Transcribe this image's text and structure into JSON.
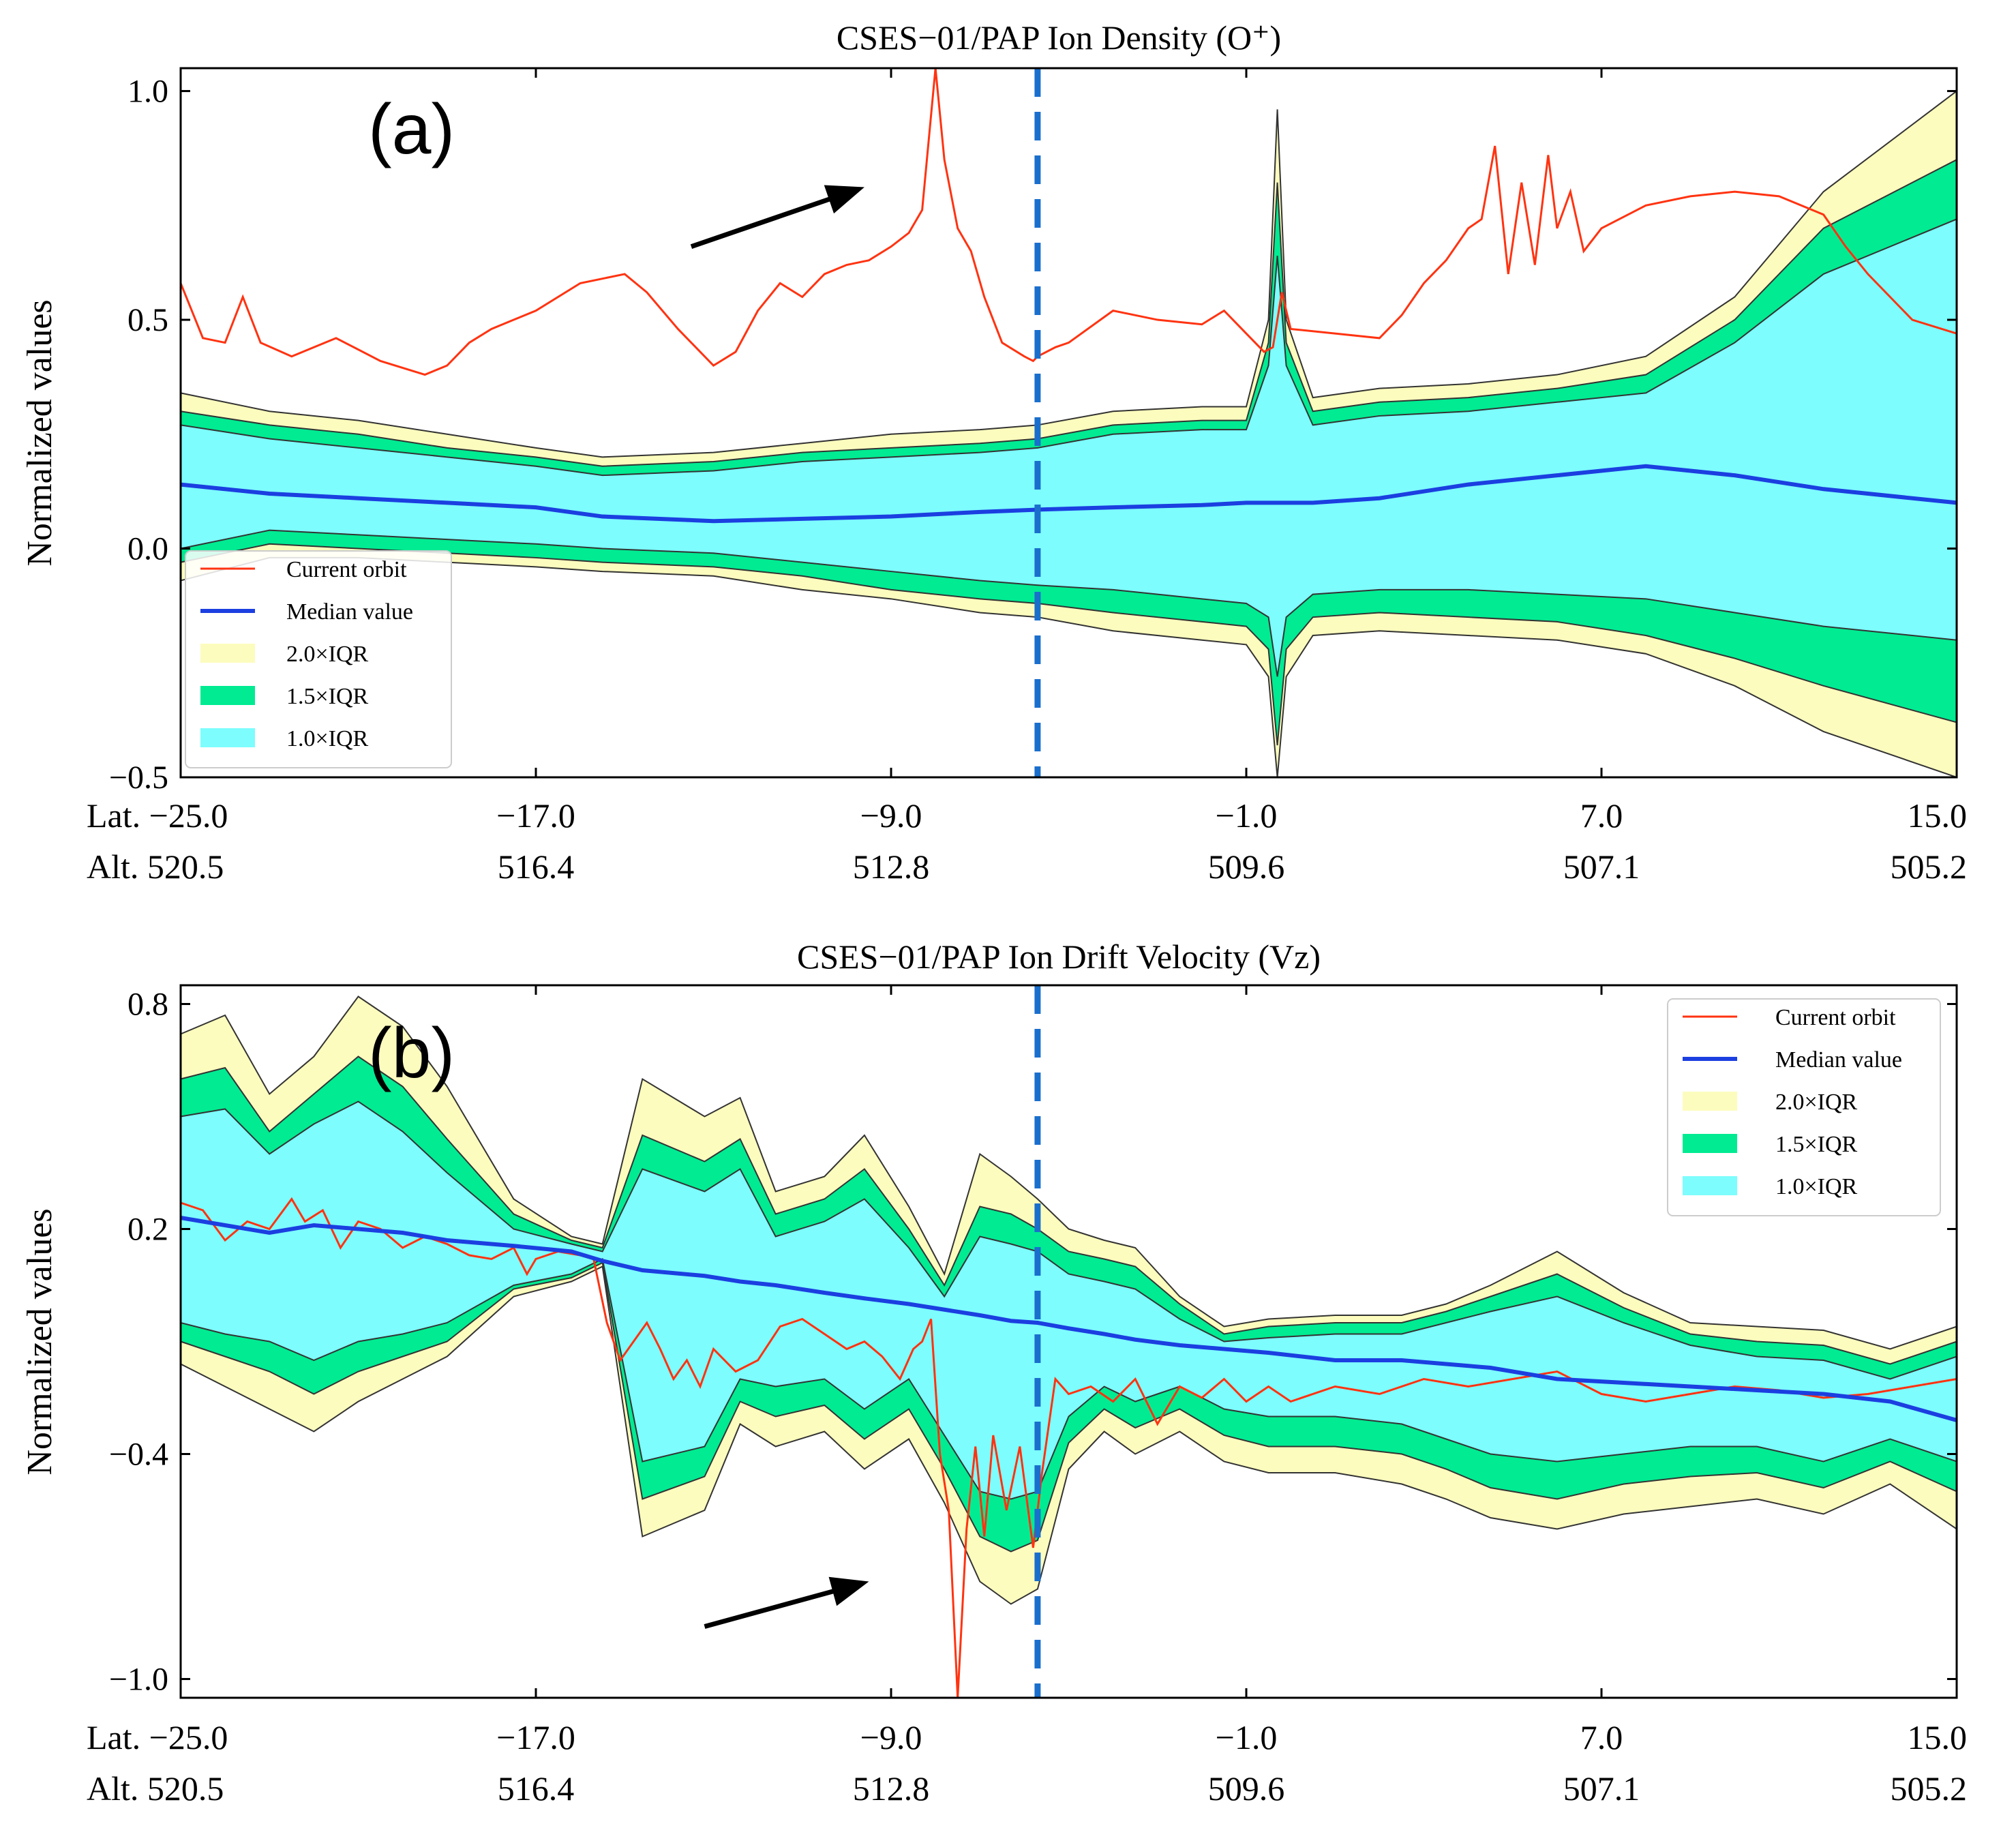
{
  "charts": [
    {
      "id": "a",
      "chart_data": {
        "type": "area",
        "title": "CSES−01/PAP Ion Density (O⁺)",
        "panel_label": "(a)",
        "ylabel": "Normalized values",
        "ylim": [
          -0.5,
          1.05
        ],
        "yticks": [
          -0.5,
          0.0,
          0.5,
          1.0
        ],
        "ytick_labels": [
          "−0.5",
          "0.0",
          "0.5",
          "1.0"
        ],
        "xlim": [
          -25.0,
          15.0
        ],
        "xticks": [
          -25.0,
          -17.0,
          -9.0,
          -1.0,
          7.0,
          15.0
        ],
        "xtick_lat_labels": [
          "Lat. −25.0",
          "−17.0",
          "−9.0",
          "−1.0",
          "7.0",
          "15.0"
        ],
        "xtick_alt_labels": [
          "Alt. 520.5",
          "516.4",
          "512.8",
          "509.6",
          "507.1",
          "505.2"
        ],
        "event_line_lat": -5.7,
        "arrow": {
          "from": [
            -13.5,
            0.66
          ],
          "to": [
            -9.6,
            0.79
          ]
        },
        "legend_position": "lower-left",
        "legend": [
          "Current orbit",
          "Median value",
          "2.0×IQR",
          "1.5×IQR",
          "1.0×IQR"
        ],
        "x": [
          -25,
          -23,
          -21,
          -19,
          -17,
          -15.5,
          -13,
          -11,
          -9,
          -7,
          -5.7,
          -4,
          -2,
          -1,
          -0.5,
          -0.3,
          -0.1,
          0.5,
          2,
          4,
          6,
          8,
          10,
          12,
          15
        ],
        "series": [
          {
            "name": "Median value",
            "values": [
              0.14,
              0.12,
              0.11,
              0.1,
              0.09,
              0.07,
              0.06,
              0.065,
              0.07,
              0.08,
              0.085,
              0.09,
              0.095,
              0.1,
              0.1,
              0.1,
              0.1,
              0.1,
              0.11,
              0.14,
              0.16,
              0.18,
              0.16,
              0.13,
              0.1
            ]
          },
          {
            "name": "2.0×IQR upper",
            "values": [
              0.34,
              0.3,
              0.28,
              0.25,
              0.22,
              0.2,
              0.21,
              0.23,
              0.25,
              0.26,
              0.27,
              0.3,
              0.31,
              0.31,
              0.5,
              0.96,
              0.5,
              0.33,
              0.35,
              0.36,
              0.38,
              0.42,
              0.55,
              0.78,
              1.0
            ]
          },
          {
            "name": "1.5×IQR upper",
            "values": [
              0.3,
              0.27,
              0.25,
              0.22,
              0.2,
              0.18,
              0.19,
              0.21,
              0.22,
              0.23,
              0.24,
              0.27,
              0.28,
              0.28,
              0.45,
              0.8,
              0.45,
              0.3,
              0.32,
              0.33,
              0.35,
              0.38,
              0.5,
              0.7,
              0.85
            ]
          },
          {
            "name": "1.0×IQR upper",
            "values": [
              0.27,
              0.24,
              0.22,
              0.2,
              0.18,
              0.16,
              0.17,
              0.19,
              0.2,
              0.21,
              0.22,
              0.25,
              0.26,
              0.26,
              0.4,
              0.64,
              0.4,
              0.27,
              0.29,
              0.3,
              0.32,
              0.34,
              0.45,
              0.6,
              0.72
            ]
          },
          {
            "name": "1.0×IQR lower",
            "values": [
              0.0,
              0.04,
              0.03,
              0.02,
              0.01,
              0.0,
              -0.01,
              -0.03,
              -0.05,
              -0.07,
              -0.08,
              -0.09,
              -0.11,
              -0.12,
              -0.15,
              -0.28,
              -0.15,
              -0.1,
              -0.09,
              -0.09,
              -0.1,
              -0.11,
              -0.14,
              -0.17,
              -0.2
            ]
          },
          {
            "name": "1.5×IQR lower",
            "values": [
              -0.03,
              0.01,
              0.0,
              -0.01,
              -0.02,
              -0.03,
              -0.04,
              -0.06,
              -0.09,
              -0.11,
              -0.12,
              -0.14,
              -0.16,
              -0.17,
              -0.22,
              -0.43,
              -0.22,
              -0.15,
              -0.14,
              -0.15,
              -0.16,
              -0.19,
              -0.24,
              -0.3,
              -0.38
            ]
          },
          {
            "name": "2.0×IQR lower",
            "values": [
              -0.07,
              -0.02,
              -0.02,
              -0.03,
              -0.04,
              -0.05,
              -0.06,
              -0.09,
              -0.11,
              -0.14,
              -0.15,
              -0.18,
              -0.2,
              -0.21,
              -0.28,
              -0.55,
              -0.28,
              -0.19,
              -0.18,
              -0.19,
              -0.2,
              -0.23,
              -0.3,
              -0.4,
              -0.52
            ]
          }
        ],
        "current_orbit": {
          "x": [
            -25,
            -24.5,
            -24,
            -23.6,
            -23.2,
            -22.5,
            -21.5,
            -20.5,
            -19.5,
            -19,
            -18.5,
            -18,
            -17.5,
            -17,
            -16,
            -15,
            -14.5,
            -13.8,
            -13,
            -12.5,
            -12,
            -11.5,
            -11,
            -10.5,
            -10,
            -9.5,
            -9,
            -8.6,
            -8.3,
            -8.0,
            -7.8,
            -7.5,
            -7.2,
            -6.9,
            -6.5,
            -6.0,
            -5.8,
            -5.7,
            -5.3,
            -5,
            -4,
            -3,
            -2,
            -1.5,
            -1,
            -0.8,
            -0.6,
            -0.4,
            -0.2,
            0,
            1,
            2,
            2.5,
            3,
            3.5,
            4,
            4.3,
            4.6,
            4.9,
            5.2,
            5.5,
            5.8,
            6,
            6.3,
            6.6,
            7,
            8,
            9,
            10,
            11,
            12,
            12.5,
            13,
            14,
            15
          ],
          "y": [
            0.58,
            0.46,
            0.45,
            0.55,
            0.45,
            0.42,
            0.46,
            0.41,
            0.38,
            0.4,
            0.45,
            0.48,
            0.5,
            0.52,
            0.58,
            0.6,
            0.56,
            0.48,
            0.4,
            0.43,
            0.52,
            0.58,
            0.55,
            0.6,
            0.62,
            0.63,
            0.66,
            0.69,
            0.74,
            1.05,
            0.85,
            0.7,
            0.65,
            0.55,
            0.45,
            0.42,
            0.41,
            0.42,
            0.44,
            0.45,
            0.52,
            0.5,
            0.49,
            0.52,
            0.47,
            0.45,
            0.43,
            0.44,
            0.56,
            0.48,
            0.47,
            0.46,
            0.51,
            0.58,
            0.63,
            0.7,
            0.72,
            0.88,
            0.6,
            0.8,
            0.62,
            0.86,
            0.7,
            0.78,
            0.65,
            0.7,
            0.75,
            0.77,
            0.78,
            0.77,
            0.73,
            0.66,
            0.6,
            0.5,
            0.47
          ]
        }
      }
    },
    {
      "id": "b",
      "chart_data": {
        "type": "area",
        "title": "CSES−01/PAP Ion Drift Velocity (Vz)",
        "panel_label": "(b)",
        "ylabel": "Normalized values",
        "ylim": [
          -1.05,
          0.85
        ],
        "yticks": [
          -1.0,
          -0.4,
          0.2,
          0.8
        ],
        "ytick_labels": [
          "−1.0",
          "−0.4",
          "0.2",
          "0.8"
        ],
        "xlim": [
          -25.0,
          15.0
        ],
        "xticks": [
          -25.0,
          -17.0,
          -9.0,
          -1.0,
          7.0,
          15.0
        ],
        "xtick_lat_labels": [
          "Lat. −25.0",
          "−17.0",
          "−9.0",
          "−1.0",
          "7.0",
          "15.0"
        ],
        "xtick_alt_labels": [
          "Alt. 520.5",
          "516.4",
          "512.8",
          "509.6",
          "507.1",
          "505.2"
        ],
        "event_line_lat": -5.7,
        "arrow": {
          "from": [
            -13.2,
            -0.86
          ],
          "to": [
            -9.5,
            -0.74
          ]
        },
        "legend_position": "upper-right",
        "legend": [
          "Current orbit",
          "Median value",
          "2.0×IQR",
          "1.5×IQR",
          "1.0×IQR"
        ],
        "x": [
          -25,
          -24,
          -23,
          -22,
          -21,
          -20,
          -19,
          -17.5,
          -16.2,
          -15.5,
          -14.6,
          -13.2,
          -12.4,
          -11.6,
          -10.5,
          -9.6,
          -8.6,
          -7.8,
          -7.0,
          -6.3,
          -5.7,
          -5.0,
          -4.2,
          -3.5,
          -2.5,
          -1.5,
          -0.5,
          1,
          2.5,
          3.5,
          4.5,
          6,
          7.5,
          9,
          10.5,
          12,
          13.5,
          15
        ],
        "series": [
          {
            "name": "Median value",
            "values": [
              0.23,
              0.21,
              0.19,
              0.21,
              0.2,
              0.19,
              0.17,
              0.155,
              0.14,
              0.115,
              0.09,
              0.075,
              0.06,
              0.05,
              0.03,
              0.015,
              0.0,
              -0.015,
              -0.03,
              -0.045,
              -0.05,
              -0.065,
              -0.08,
              -0.095,
              -0.11,
              -0.12,
              -0.13,
              -0.15,
              -0.15,
              -0.16,
              -0.17,
              -0.2,
              -0.21,
              -0.22,
              -0.23,
              -0.24,
              -0.26,
              -0.31
            ]
          },
          {
            "name": "2.0×IQR upper",
            "values": [
              0.72,
              0.77,
              0.56,
              0.66,
              0.82,
              0.74,
              0.58,
              0.28,
              0.18,
              0.16,
              0.6,
              0.5,
              0.55,
              0.3,
              0.34,
              0.45,
              0.26,
              0.08,
              0.4,
              0.34,
              0.28,
              0.2,
              0.17,
              0.15,
              0.02,
              -0.06,
              -0.04,
              -0.03,
              -0.03,
              0.0,
              0.05,
              0.14,
              0.03,
              -0.05,
              -0.06,
              -0.07,
              -0.12,
              -0.06
            ]
          },
          {
            "name": "1.5×IQR upper",
            "values": [
              0.6,
              0.63,
              0.46,
              0.56,
              0.66,
              0.58,
              0.44,
              0.24,
              0.17,
              0.15,
              0.45,
              0.38,
              0.44,
              0.24,
              0.28,
              0.36,
              0.2,
              0.05,
              0.26,
              0.24,
              0.2,
              0.14,
              0.12,
              0.1,
              0.0,
              -0.08,
              -0.06,
              -0.05,
              -0.05,
              -0.02,
              0.02,
              0.08,
              -0.01,
              -0.08,
              -0.1,
              -0.11,
              -0.16,
              -0.1
            ]
          },
          {
            "name": "1.0×IQR upper",
            "values": [
              0.5,
              0.52,
              0.4,
              0.48,
              0.54,
              0.46,
              0.35,
              0.2,
              0.16,
              0.14,
              0.36,
              0.3,
              0.36,
              0.18,
              0.22,
              0.28,
              0.15,
              0.02,
              0.18,
              0.16,
              0.14,
              0.08,
              0.06,
              0.04,
              -0.04,
              -0.1,
              -0.09,
              -0.08,
              -0.08,
              -0.05,
              -0.02,
              0.02,
              -0.05,
              -0.11,
              -0.14,
              -0.15,
              -0.2,
              -0.14
            ]
          },
          {
            "name": "1.0×IQR lower",
            "values": [
              -0.05,
              -0.08,
              -0.1,
              -0.15,
              -0.1,
              -0.08,
              -0.05,
              0.05,
              0.08,
              0.12,
              -0.42,
              -0.38,
              -0.2,
              -0.22,
              -0.2,
              -0.28,
              -0.2,
              -0.35,
              -0.5,
              -0.52,
              -0.5,
              -0.3,
              -0.22,
              -0.26,
              -0.22,
              -0.28,
              -0.3,
              -0.3,
              -0.32,
              -0.36,
              -0.4,
              -0.42,
              -0.4,
              -0.38,
              -0.38,
              -0.42,
              -0.36,
              -0.42
            ]
          },
          {
            "name": "1.5×IQR lower",
            "values": [
              -0.1,
              -0.14,
              -0.18,
              -0.24,
              -0.18,
              -0.14,
              -0.1,
              0.04,
              0.07,
              0.11,
              -0.52,
              -0.46,
              -0.26,
              -0.3,
              -0.27,
              -0.36,
              -0.28,
              -0.44,
              -0.62,
              -0.66,
              -0.63,
              -0.37,
              -0.28,
              -0.33,
              -0.28,
              -0.35,
              -0.38,
              -0.38,
              -0.4,
              -0.44,
              -0.49,
              -0.52,
              -0.48,
              -0.46,
              -0.45,
              -0.49,
              -0.42,
              -0.5
            ]
          },
          {
            "name": "2.0×IQR lower",
            "values": [
              -0.16,
              -0.22,
              -0.28,
              -0.34,
              -0.26,
              -0.2,
              -0.14,
              0.02,
              0.06,
              0.1,
              -0.62,
              -0.55,
              -0.32,
              -0.38,
              -0.34,
              -0.44,
              -0.36,
              -0.53,
              -0.74,
              -0.8,
              -0.76,
              -0.44,
              -0.34,
              -0.4,
              -0.34,
              -0.42,
              -0.45,
              -0.45,
              -0.48,
              -0.52,
              -0.57,
              -0.6,
              -0.56,
              -0.54,
              -0.52,
              -0.56,
              -0.48,
              -0.6
            ]
          }
        ],
        "current_orbit": {
          "x": [
            -25,
            -24.5,
            -24,
            -23.5,
            -23,
            -22.5,
            -22.2,
            -21.8,
            -21.4,
            -21,
            -20.5,
            -20,
            -19.5,
            -19,
            -18.5,
            -18,
            -17.5,
            -17.2,
            -17,
            -16.5,
            -16,
            -15.7,
            -15.4,
            -15.1,
            -14.8,
            -14.5,
            -14.2,
            -13.9,
            -13.6,
            -13.3,
            -13,
            -12.5,
            -12,
            -11.5,
            -11,
            -10.5,
            -10,
            -9.6,
            -9.2,
            -8.8,
            -8.5,
            -8.3,
            -8.1,
            -7.9,
            -7.7,
            -7.5,
            -7.3,
            -7.1,
            -6.9,
            -6.7,
            -6.4,
            -6.1,
            -5.8,
            -5.6,
            -5.3,
            -5,
            -4.5,
            -4,
            -3.5,
            -3,
            -2.5,
            -2,
            -1.5,
            -1,
            -0.5,
            0,
            1,
            2,
            3,
            4,
            5,
            6,
            7,
            8,
            9,
            10,
            11,
            12,
            13,
            14,
            15
          ],
          "y": [
            0.27,
            0.25,
            0.17,
            0.22,
            0.2,
            0.28,
            0.22,
            0.25,
            0.15,
            0.22,
            0.2,
            0.15,
            0.18,
            0.16,
            0.13,
            0.12,
            0.15,
            0.08,
            0.12,
            0.14,
            0.13,
            0.12,
            -0.05,
            -0.15,
            -0.1,
            -0.05,
            -0.12,
            -0.2,
            -0.15,
            -0.22,
            -0.12,
            -0.18,
            -0.15,
            -0.06,
            -0.04,
            -0.08,
            -0.12,
            -0.1,
            -0.14,
            -0.2,
            -0.12,
            -0.1,
            -0.04,
            -0.4,
            -0.55,
            -1.05,
            -0.6,
            -0.38,
            -0.62,
            -0.35,
            -0.55,
            -0.38,
            -0.65,
            -0.45,
            -0.2,
            -0.24,
            -0.22,
            -0.26,
            -0.2,
            -0.32,
            -0.22,
            -0.25,
            -0.2,
            -0.26,
            -0.22,
            -0.26,
            -0.22,
            -0.24,
            -0.2,
            -0.22,
            -0.2,
            -0.18,
            -0.24,
            -0.26,
            -0.24,
            -0.22,
            -0.23,
            -0.25,
            -0.24,
            -0.22,
            -0.2
          ]
        }
      }
    }
  ]
}
